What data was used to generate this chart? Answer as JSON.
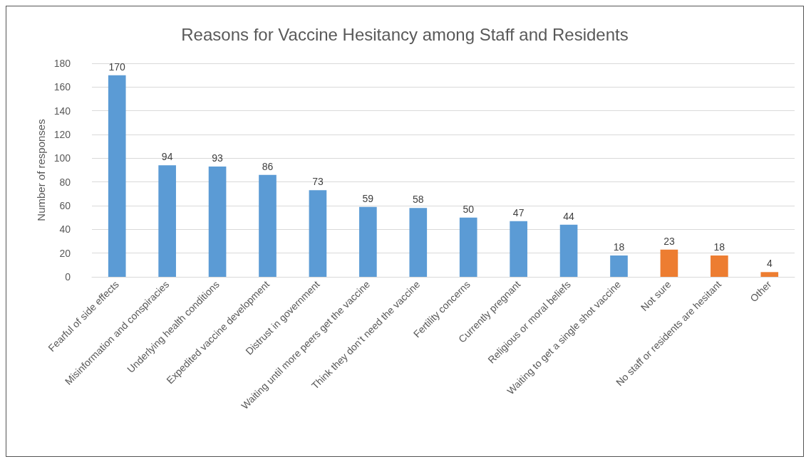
{
  "chart_data": {
    "type": "bar",
    "title": "Reasons for Vaccine Hesitancy among Staff and Residents",
    "ylabel": "Number of responses",
    "categories": [
      "Fearful of side effects",
      "Misinformation and conspiracies",
      "Underlying health conditions",
      "Expedited vaccine development",
      "Distrust in government",
      "Waiting until more peers get the vaccine",
      "Think they don’t need the vaccine",
      "Fertility concerns",
      "Currently pregnant",
      "Religious or moral beliefs",
      "Waiting to get a single shot vaccine",
      "Not sure",
      "No staff or residents are hesitant",
      "Other"
    ],
    "values": [
      170,
      94,
      93,
      86,
      73,
      59,
      58,
      50,
      47,
      44,
      18,
      23,
      18,
      4
    ],
    "colors": [
      "#5b9bd5",
      "#5b9bd5",
      "#5b9bd5",
      "#5b9bd5",
      "#5b9bd5",
      "#5b9bd5",
      "#5b9bd5",
      "#5b9bd5",
      "#5b9bd5",
      "#5b9bd5",
      "#5b9bd5",
      "#ed7d31",
      "#ed7d31",
      "#ed7d31"
    ],
    "ylim": [
      0,
      180
    ],
    "yticks": [
      0,
      20,
      40,
      60,
      80,
      100,
      120,
      140,
      160,
      180
    ],
    "grid": "y",
    "data_labels": true
  }
}
